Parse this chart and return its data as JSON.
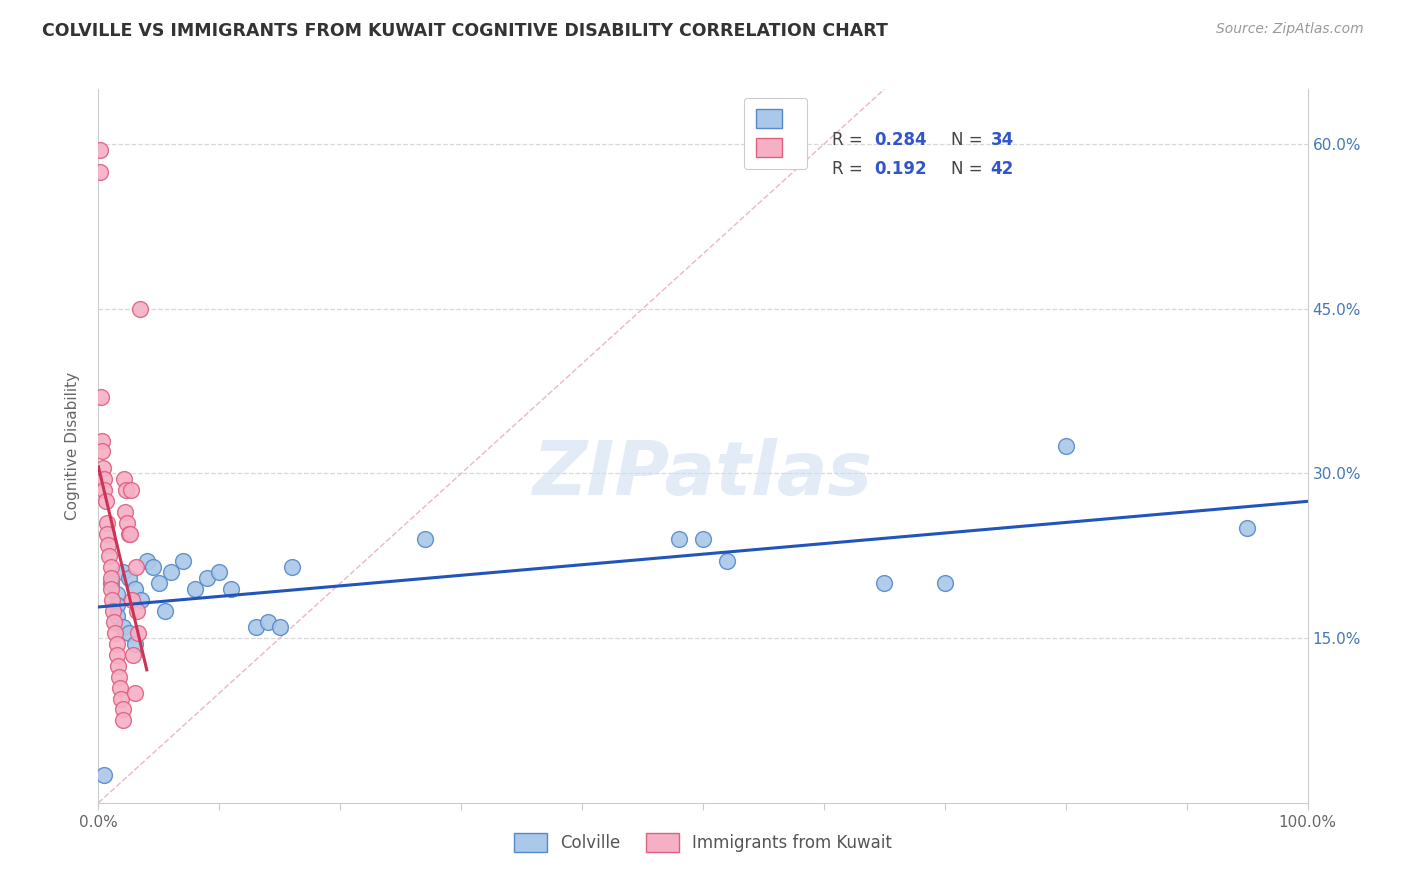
{
  "title": "COLVILLE VS IMMIGRANTS FROM KUWAIT COGNITIVE DISABILITY CORRELATION CHART",
  "source": "Source: ZipAtlas.com",
  "ylabel": "Cognitive Disability",
  "colville_color": "#aac8e8",
  "kuwait_color": "#f5b0c5",
  "colville_edge": "#5588cc",
  "kuwait_edge": "#e06080",
  "line_color_blue": "#2255bb",
  "line_color_pink": "#cc3355",
  "diag_color": "#e8b0c0",
  "legend_r_blue": "0.284",
  "legend_n_blue": "34",
  "legend_r_pink": "0.192",
  "legend_n_pink": "42",
  "watermark": "ZIPatlas",
  "colville_x": [
    0.5,
    1.0,
    1.5,
    1.5,
    1.5,
    2.0,
    2.0,
    2.5,
    2.5,
    3.0,
    3.0,
    3.5,
    4.0,
    4.5,
    5.0,
    5.5,
    6.0,
    7.0,
    8.0,
    9.0,
    10.0,
    11.0,
    13.0,
    14.0,
    15.0,
    16.0,
    27.0,
    48.0,
    50.0,
    52.0,
    65.0,
    70.0,
    80.0,
    95.0
  ],
  "colville_y": [
    2.5,
    20.0,
    19.0,
    18.0,
    17.0,
    21.0,
    16.0,
    20.5,
    15.5,
    19.5,
    14.5,
    18.5,
    22.0,
    21.5,
    20.0,
    17.5,
    21.0,
    22.0,
    19.5,
    20.5,
    21.0,
    19.5,
    16.0,
    16.5,
    16.0,
    21.5,
    24.0,
    24.0,
    24.0,
    22.0,
    20.0,
    20.0,
    32.5,
    25.0
  ],
  "kuwait_x": [
    0.1,
    0.1,
    0.2,
    0.3,
    0.3,
    0.4,
    0.5,
    0.5,
    0.6,
    0.7,
    0.7,
    0.8,
    0.9,
    1.0,
    1.0,
    1.0,
    1.1,
    1.2,
    1.3,
    1.4,
    1.5,
    1.5,
    1.6,
    1.7,
    1.8,
    1.9,
    2.0,
    2.0,
    2.1,
    2.2,
    2.3,
    2.4,
    2.5,
    2.6,
    2.7,
    2.8,
    2.9,
    3.0,
    3.1,
    3.2,
    3.3,
    3.4
  ],
  "kuwait_y": [
    59.5,
    57.5,
    37.0,
    33.0,
    32.0,
    30.5,
    29.5,
    28.5,
    27.5,
    25.5,
    24.5,
    23.5,
    22.5,
    21.5,
    20.5,
    19.5,
    18.5,
    17.5,
    16.5,
    15.5,
    14.5,
    13.5,
    12.5,
    11.5,
    10.5,
    9.5,
    8.5,
    7.5,
    29.5,
    26.5,
    28.5,
    25.5,
    24.5,
    24.5,
    28.5,
    18.5,
    13.5,
    10.0,
    21.5,
    17.5,
    15.5,
    45.0
  ],
  "xlim": [
    0,
    100
  ],
  "ylim": [
    0,
    65
  ],
  "yticks": [
    15,
    30,
    45,
    60
  ],
  "ytick_labels": [
    "15.0%",
    "30.0%",
    "45.0%",
    "60.0%"
  ],
  "xtick_labels": [
    "0.0%",
    "100.0%"
  ]
}
